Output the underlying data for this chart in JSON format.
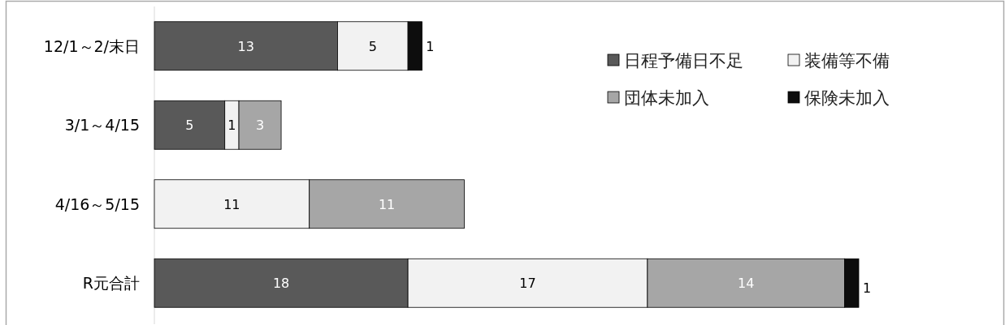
{
  "chart_data": {
    "type": "bar",
    "orientation": "horizontal",
    "stacked": true,
    "data_labels": true,
    "legend": "top right",
    "categories": [
      "12/1～2/末日",
      "3/1～4/15",
      "4/16～5/15",
      "R元合計"
    ],
    "series": [
      {
        "name": "日程予備日不足",
        "color": "#595959",
        "values": [
          13,
          5,
          null,
          18
        ]
      },
      {
        "name": "装備等不備",
        "color": "#f2f2f2",
        "values": [
          5,
          1,
          11,
          17
        ]
      },
      {
        "name": "団体未加入",
        "color": "#a6a6a6",
        "values": [
          null,
          3,
          11,
          14
        ]
      },
      {
        "name": "保険未加入",
        "color": "#0d0d0d",
        "values": [
          1,
          null,
          null,
          1
        ]
      }
    ]
  }
}
